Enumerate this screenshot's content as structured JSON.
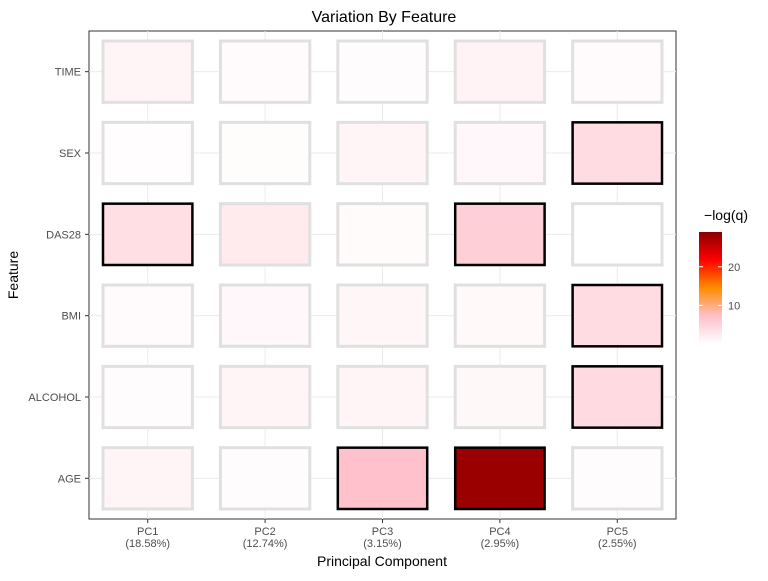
{
  "chart_data": {
    "type": "heatmap",
    "title": "Variation By Feature",
    "xlabel": "Principal Component",
    "ylabel": "Feature",
    "x_categories": [
      {
        "name": "PC1",
        "variance": "(18.58%)"
      },
      {
        "name": "PC2",
        "variance": "(12.74%)"
      },
      {
        "name": "PC3",
        "variance": "(3.15%)"
      },
      {
        "name": "PC4",
        "variance": "(2.95%)"
      },
      {
        "name": "PC5",
        "variance": "(2.55%)"
      }
    ],
    "y_categories": [
      "TIME",
      "SEX",
      "DAS28",
      "BMI",
      "ALCOHOL",
      "AGE"
    ],
    "values": [
      [
        1.2,
        0.6,
        0.3,
        1.4,
        0.6
      ],
      [
        0.2,
        0.4,
        1.2,
        0.9,
        4.0
      ],
      [
        3.8,
        2.4,
        0.5,
        5.5,
        0.0
      ],
      [
        0.6,
        0.9,
        1.0,
        0.7,
        4.0
      ],
      [
        0.3,
        1.3,
        1.1,
        0.8,
        4.3
      ],
      [
        1.1,
        0.3,
        7.0,
        28.0,
        0.3
      ]
    ],
    "significant": [
      [
        false,
        false,
        false,
        false,
        false
      ],
      [
        false,
        false,
        false,
        false,
        true
      ],
      [
        true,
        false,
        false,
        true,
        false
      ],
      [
        false,
        false,
        false,
        false,
        true
      ],
      [
        false,
        false,
        false,
        false,
        true
      ],
      [
        false,
        false,
        true,
        true,
        false
      ]
    ],
    "legend": {
      "title": "−log(q)",
      "ticks": [
        10,
        20
      ],
      "range": [
        0,
        29
      ],
      "placement": "right",
      "colors": [
        "#ffffff",
        "#ffc0cb",
        "#ff8c00",
        "#ff0000",
        "#8b0000"
      ]
    },
    "grid": true
  }
}
